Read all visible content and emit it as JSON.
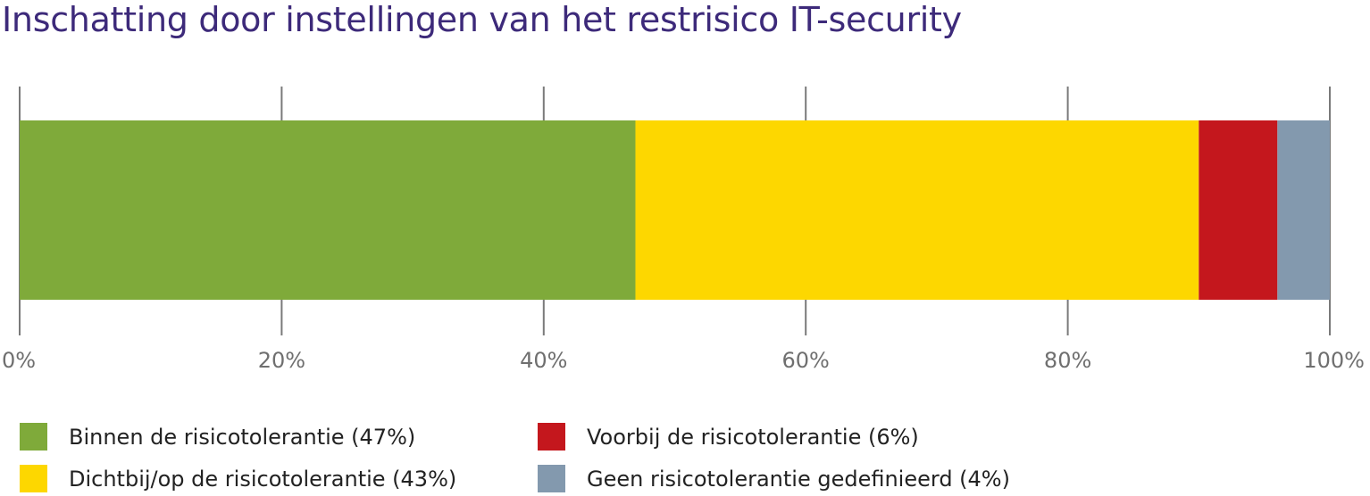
{
  "chart_data": {
    "type": "bar",
    "orientation": "horizontal",
    "stacked": true,
    "title": "Inschatting door instellingen van het restrisico IT-security",
    "xlim": [
      0,
      100
    ],
    "ticks": [
      "0%",
      "20%",
      "40%",
      "60%",
      "80%",
      "100%"
    ],
    "tick_values": [
      0,
      20,
      40,
      60,
      80,
      100
    ],
    "grid": true,
    "legend_position": "bottom",
    "series": [
      {
        "name": "Binnen de risicotolerantie (47%)",
        "value": 47,
        "color": "#7faa3a"
      },
      {
        "name": "Dichtbij/op de risicotolerantie (43%)",
        "value": 43,
        "color": "#fdd700"
      },
      {
        "name": "Voorbij de risicotolerantie (6%)",
        "value": 6,
        "color": "#c4171d"
      },
      {
        "name": "Geen risicotolerantie gedefinieerd (4%)",
        "value": 4,
        "color": "#8399ae"
      }
    ]
  }
}
